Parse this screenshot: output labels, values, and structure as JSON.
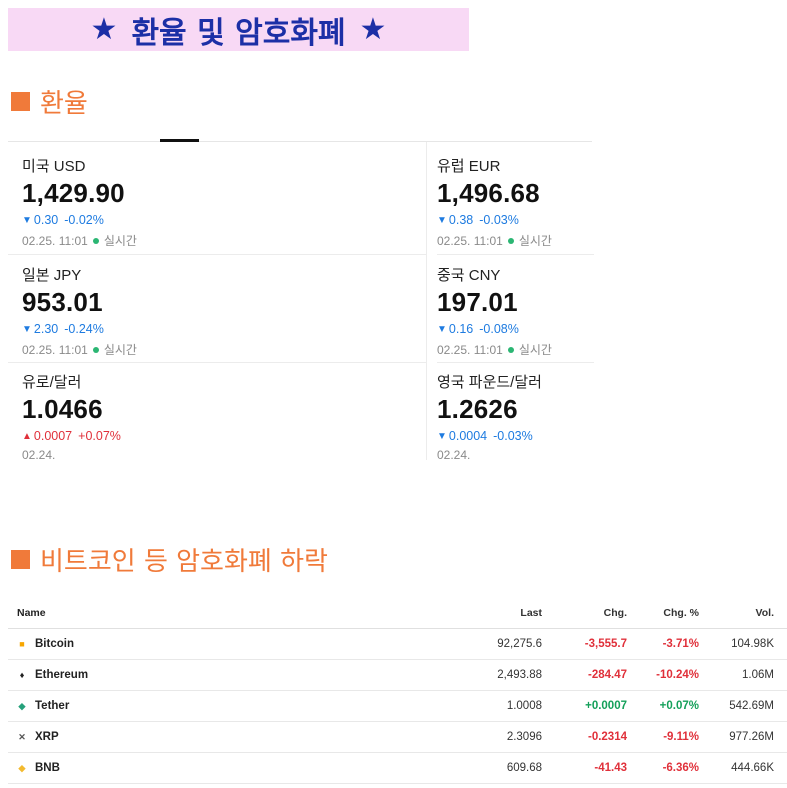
{
  "banner": {
    "star": "★",
    "title": "환율 및 암호화폐"
  },
  "sections": {
    "fx_title": "환율",
    "crypto_title": "비트코인 등 암호화폐 하락"
  },
  "fx": [
    {
      "name": "미국 USD",
      "value": "1,429.90",
      "direction": "down",
      "arrow": "▼",
      "change": "0.30",
      "pct": "-0.02%",
      "date": "02.25. 11:01",
      "live": "실시간"
    },
    {
      "name": "유럽 EUR",
      "value": "1,496.68",
      "direction": "down",
      "arrow": "▼",
      "change": "0.38",
      "pct": "-0.03%",
      "date": "02.25. 11:01",
      "live": "실시간"
    },
    {
      "name": "일본 JPY",
      "value": "953.01",
      "direction": "down",
      "arrow": "▼",
      "change": "2.30",
      "pct": "-0.24%",
      "date": "02.25. 11:01",
      "live": "실시간"
    },
    {
      "name": "중국 CNY",
      "value": "197.01",
      "direction": "down",
      "arrow": "▼",
      "change": "0.16",
      "pct": "-0.08%",
      "date": "02.25. 11:01",
      "live": "실시간"
    },
    {
      "name": "유로/달러",
      "value": "1.0466",
      "direction": "up",
      "arrow": "▲",
      "change": "0.0007",
      "pct": "+0.07%",
      "date": "02.24.",
      "live": ""
    },
    {
      "name": "영국 파운드/달러",
      "value": "1.2626",
      "direction": "down",
      "arrow": "▼",
      "change": "0.0004",
      "pct": "-0.03%",
      "date": "02.24.",
      "live": ""
    }
  ],
  "crypto": {
    "headers": {
      "name": "Name",
      "last": "Last",
      "chg": "Chg.",
      "chg_pct": "Chg. %",
      "vol": "Vol."
    },
    "rows": [
      {
        "name": "Bitcoin",
        "icon": "bitcoin-icon",
        "icon_color": "#f7a600",
        "last": "92,275.6",
        "chg": "-3,555.7",
        "chg_pct": "-3.71%",
        "vol": "104.98K",
        "direction": "neg"
      },
      {
        "name": "Ethereum",
        "icon": "ethereum-icon",
        "icon_color": "#222222",
        "last": "2,493.88",
        "chg": "-284.47",
        "chg_pct": "-10.24%",
        "vol": "1.06M",
        "direction": "neg"
      },
      {
        "name": "Tether",
        "icon": "tether-icon",
        "icon_color": "#26a17b",
        "last": "1.0008",
        "chg": "+0.0007",
        "chg_pct": "+0.07%",
        "vol": "542.69M",
        "direction": "pos"
      },
      {
        "name": "XRP",
        "icon": "xrp-icon",
        "icon_color": "#555555",
        "last": "2.3096",
        "chg": "-0.2314",
        "chg_pct": "-9.11%",
        "vol": "977.26M",
        "direction": "neg"
      },
      {
        "name": "BNB",
        "icon": "bnb-icon",
        "icon_color": "#f3ba2f",
        "last": "609.68",
        "chg": "-41.43",
        "chg_pct": "-6.36%",
        "vol": "444.66K",
        "direction": "neg"
      }
    ]
  },
  "colors": {
    "accent": "#f07a3a",
    "banner_bg": "#f8d9f5",
    "banner_text": "#1c2fa6",
    "down": "#1e7be0",
    "up": "#e0303a",
    "neg": "#e0303a",
    "pos": "#14a05a"
  }
}
